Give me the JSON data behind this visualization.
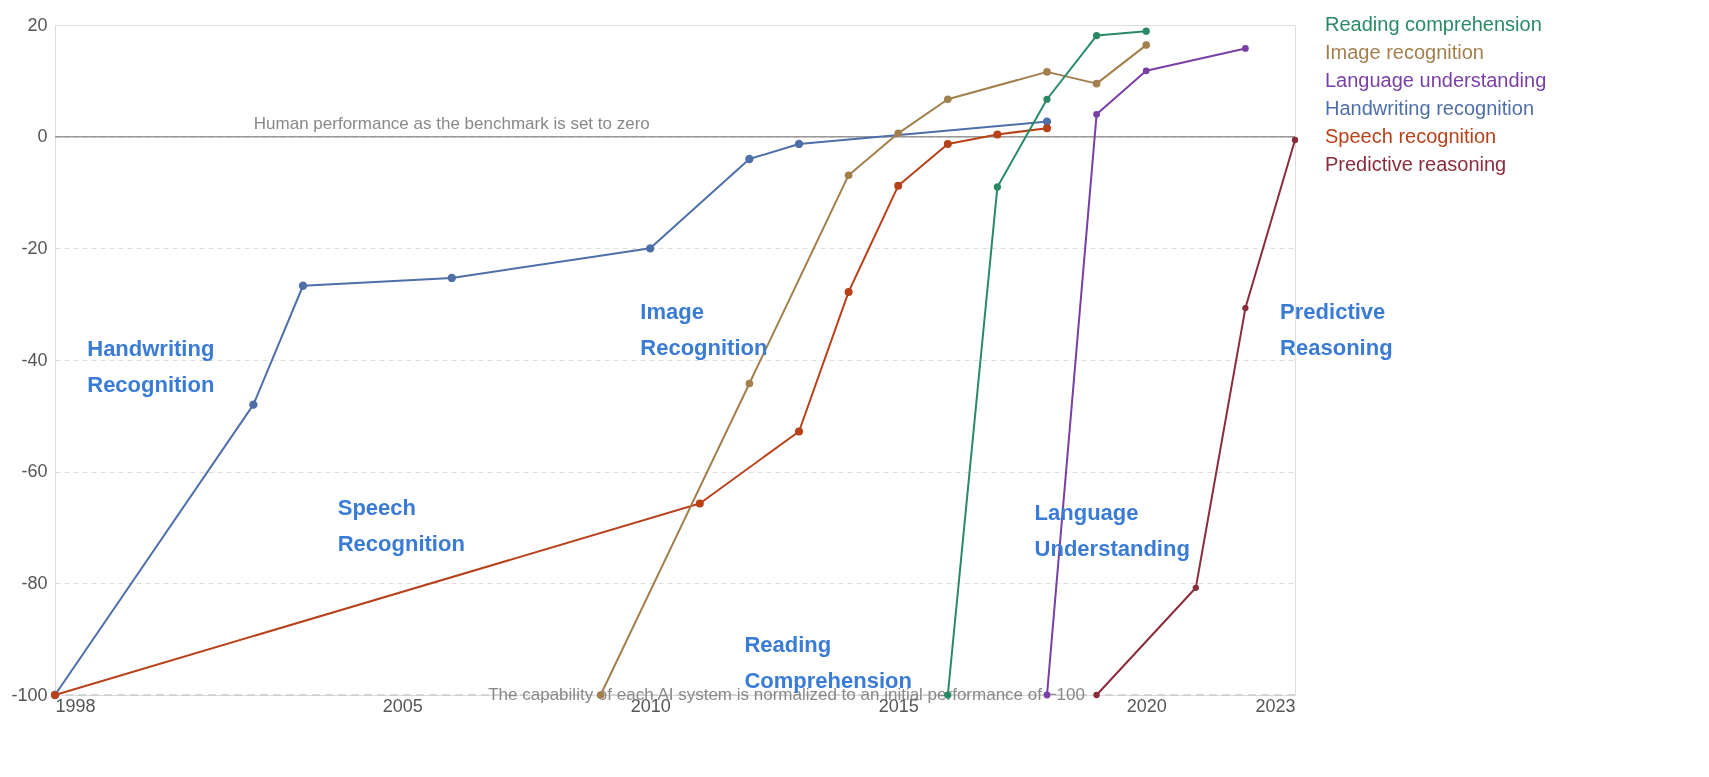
{
  "chart_data": {
    "type": "line",
    "marker": "circle",
    "grid": "y",
    "legend": "right",
    "xlim": [
      1998,
      2023
    ],
    "xticks": [
      1998,
      2005,
      2010,
      2015,
      2020,
      2023
    ],
    "ylim": [
      -100,
      20
    ],
    "yticks": [
      -100,
      -80,
      -60,
      -40,
      -20,
      0,
      20
    ],
    "series": [
      {
        "name": "Handwriting recognition",
        "color": "#4e6fa8",
        "x": [
          1998,
          2002,
          2003,
          2006,
          2010,
          2012,
          2013,
          2018
        ],
        "values": [
          -100,
          -48,
          -26.7,
          -25.3,
          -20,
          -4,
          -1.3,
          2.7
        ]
      },
      {
        "name": "Speech recognition",
        "color": "#b8411a",
        "x": [
          1998,
          2011,
          2013,
          2014,
          2015,
          2016,
          2017,
          2018
        ],
        "values": [
          -100,
          -65.7,
          -52.8,
          -27.8,
          -8.8,
          -1.3,
          0.4,
          1.5
        ]
      },
      {
        "name": "Image recognition",
        "color": "#a27f4c",
        "x": [
          2009,
          2012,
          2014,
          2015,
          2016,
          2018,
          2019,
          2020
        ],
        "values": [
          -100,
          -44.2,
          -6.9,
          0.6,
          6.7,
          11.6,
          9.5,
          16.4
        ]
      },
      {
        "name": "Reading comprehension",
        "color": "#2a8a66",
        "x": [
          2016,
          2017,
          2018,
          2019,
          2020
        ],
        "values": [
          -100,
          -9,
          6.7,
          18.1,
          18.9
        ]
      },
      {
        "name": "Language understanding",
        "color": "#7a3fa6",
        "x": [
          2018,
          2019,
          2020,
          2022
        ],
        "values": [
          -100,
          4,
          11.8,
          15.8
        ]
      },
      {
        "name": "Predictive reasoning",
        "color": "#8a2c3b",
        "x": [
          2019,
          2021,
          2022,
          2023
        ],
        "values": [
          -100,
          -80.8,
          -30.7,
          -0.6
        ]
      }
    ],
    "ref_lines": [
      {
        "axis": "y",
        "value": 0,
        "label": "Human performance as the benchmark is set to zero",
        "color": "#999999"
      },
      {
        "axis": "y",
        "value": -100,
        "label": "The capability of each AI system is normalized to an initial performance of −100",
        "color": "#cccccc",
        "line_style": "dashed"
      }
    ],
    "annotations": [
      "Handwriting Recognition",
      "Speech Recognition",
      "Image Recognition",
      "Reading Comprehension",
      "Language Understanding",
      "Predictive Reasoning"
    ]
  }
}
